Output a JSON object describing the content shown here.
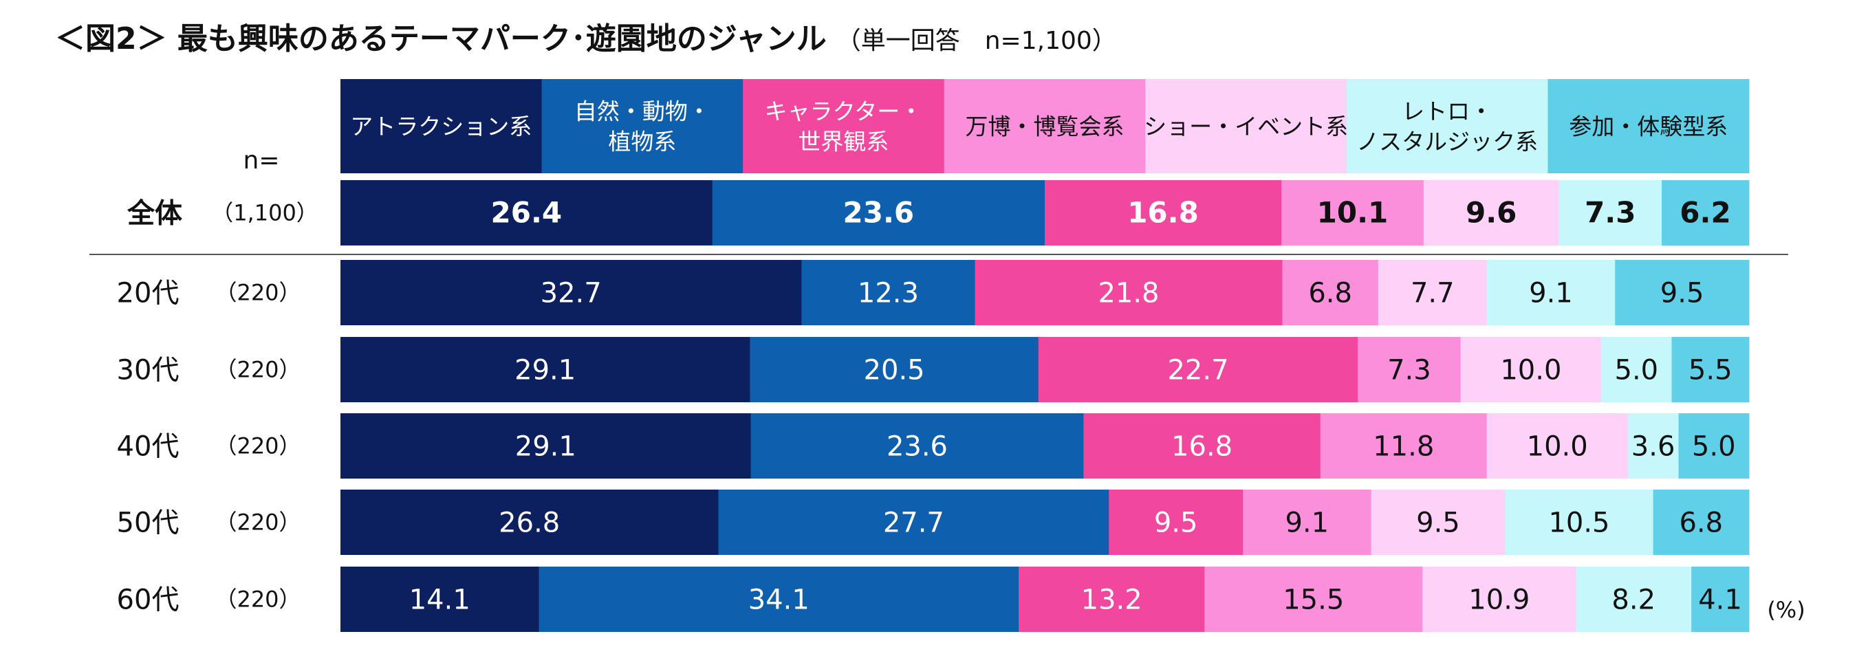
{
  "title": "＜図2＞ 最も興味のあるテーマパーク･遊園地のジャンル",
  "subtitle": "（単一回答　n=1,100）",
  "n_header": "n=",
  "unit": "(%)",
  "chart_data": {
    "type": "bar",
    "orientation": "horizontal",
    "stacked": true,
    "percent_stacked": true,
    "unit": "%",
    "title": "＜図2＞ 最も興味のあるテーマパーク･遊園地のジャンル",
    "subtitle": "（単一回答　n=1,100）",
    "legend_placement": "top",
    "categories": [
      "全体",
      "20代",
      "30代",
      "40代",
      "50代",
      "60代"
    ],
    "n_labels": [
      "（1,100）",
      "（220）",
      "（220）",
      "（220）",
      "（220）",
      "（220）"
    ],
    "series": [
      {
        "name": "アトラクション系",
        "name_lines": [
          "アトラクション系"
        ],
        "color": "#0c1f5e",
        "text_color": "#ffffff",
        "values": [
          26.4,
          32.7,
          29.1,
          29.1,
          26.8,
          14.1
        ]
      },
      {
        "name": "自然・動物・植物系",
        "name_lines": [
          "自然・動物・",
          "植物系"
        ],
        "color": "#0e5fae",
        "text_color": "#ffffff",
        "values": [
          23.6,
          12.3,
          20.5,
          23.6,
          27.7,
          34.1
        ]
      },
      {
        "name": "キャラクター・世界観系",
        "name_lines": [
          "キャラクター・",
          "世界観系"
        ],
        "color": "#f2479e",
        "text_color": "#ffffff",
        "values": [
          16.8,
          21.8,
          22.7,
          16.8,
          9.5,
          13.2
        ]
      },
      {
        "name": "万博・博覧会系",
        "name_lines": [
          "万博・博覧会系"
        ],
        "color": "#fb8fdc",
        "text_color": "#111111",
        "values": [
          10.1,
          6.8,
          7.3,
          11.8,
          9.1,
          15.5
        ]
      },
      {
        "name": "ショー・イベント系",
        "name_lines": [
          "ショー・イベント系"
        ],
        "color": "#fdd1f8",
        "text_color": "#111111",
        "values": [
          9.6,
          7.7,
          10.0,
          10.0,
          9.5,
          10.9
        ]
      },
      {
        "name": "レトロ・ノスタルジック系",
        "name_lines": [
          "レトロ・",
          "ノスタルジック系"
        ],
        "color": "#c6f8fb",
        "text_color": "#111111",
        "values": [
          7.3,
          9.1,
          5.0,
          3.6,
          10.5,
          8.2
        ]
      },
      {
        "name": "参加・体験型系",
        "name_lines": [
          "参加・体験型系"
        ],
        "color": "#60d0e9",
        "text_color": "#111111",
        "values": [
          6.2,
          9.5,
          5.5,
          5.0,
          6.8,
          4.1
        ]
      }
    ],
    "value_labels": [
      [
        "26.4",
        "23.6",
        "16.8",
        "10.1",
        "9.6",
        "7.3",
        "6.2"
      ],
      [
        "32.7",
        "12.3",
        "21.8",
        "6.8",
        "7.7",
        "9.1",
        "9.5"
      ],
      [
        "29.1",
        "20.5",
        "22.7",
        "7.3",
        "10.0",
        "5.0",
        "5.5"
      ],
      [
        "29.1",
        "23.6",
        "16.8",
        "11.8",
        "10.0",
        "3.6",
        "5.0"
      ],
      [
        "26.8",
        "27.7",
        "9.5",
        "9.1",
        "9.5",
        "10.5",
        "6.8"
      ],
      [
        "14.1",
        "34.1",
        "13.2",
        "15.5",
        "10.9",
        "8.2",
        "4.1"
      ]
    ],
    "xlim": [
      0,
      100
    ],
    "grid": false
  }
}
